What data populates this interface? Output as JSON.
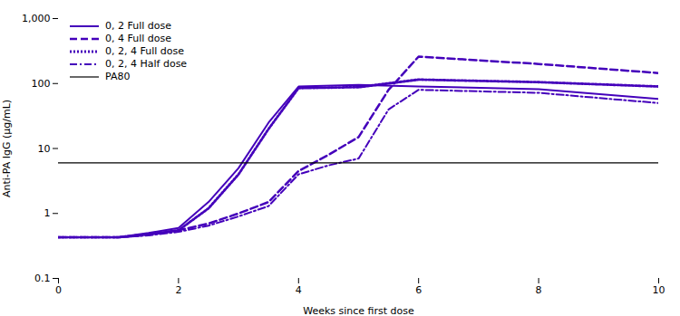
{
  "chart_data": {
    "type": "line",
    "xlabel": "Weeks since first dose",
    "ylabel": "Anti-PA IgG (μg/mL)",
    "xlim": [
      0,
      10
    ],
    "ylim": [
      0.1,
      1000
    ],
    "xticks": [
      0,
      2,
      4,
      6,
      8,
      10
    ],
    "yticks": [
      0.1,
      1,
      10,
      100,
      {
        "value": 1000,
        "label": "1,000"
      }
    ],
    "log": "y",
    "grid": false,
    "legend": "upper left",
    "series": [
      {
        "name": "0, 2 Full dose",
        "color": "#4400BB",
        "line_style": "solid",
        "x": [
          0,
          0.5,
          1,
          1.5,
          2,
          2.5,
          3,
          3.5,
          4,
          5,
          6,
          8,
          10
        ],
        "values": [
          0.43,
          0.43,
          0.43,
          0.5,
          0.6,
          1.5,
          5.0,
          25,
          90,
          95,
          90,
          82,
          58
        ]
      },
      {
        "name": "0, 4 Full dose",
        "color": "#4400BB",
        "line_style": "dashed",
        "x": [
          0,
          0.5,
          1,
          1.5,
          2,
          2.5,
          3,
          3.5,
          4,
          4.5,
          5,
          5.5,
          6,
          8,
          10
        ],
        "values": [
          0.43,
          0.43,
          0.43,
          0.47,
          0.55,
          0.7,
          1.0,
          1.5,
          4.5,
          8,
          15,
          80,
          260,
          200,
          145
        ]
      },
      {
        "name": "0, 2, 4 Full dose",
        "color": "#4400BB",
        "line_style": "dotted",
        "x": [
          0,
          0.5,
          1,
          1.5,
          2,
          2.5,
          3,
          3.5,
          4,
          5,
          6,
          8,
          10
        ],
        "values": [
          0.43,
          0.43,
          0.43,
          0.48,
          0.55,
          1.2,
          4.0,
          20,
          85,
          88,
          115,
          105,
          90
        ]
      },
      {
        "name": "0, 2, 4 Half dose",
        "color": "#4400BB",
        "line_style": "dashdot",
        "x": [
          0,
          0.5,
          1,
          1.5,
          2,
          2.5,
          3,
          3.5,
          4,
          4.5,
          5,
          5.5,
          6,
          8,
          10
        ],
        "values": [
          0.43,
          0.43,
          0.43,
          0.46,
          0.52,
          0.65,
          0.9,
          1.3,
          4.0,
          5.5,
          7.0,
          40,
          80,
          72,
          50
        ]
      },
      {
        "name": "PA80",
        "color": "#000000",
        "line_style": "solid",
        "type": "rule",
        "values": [
          6.0
        ]
      }
    ]
  }
}
